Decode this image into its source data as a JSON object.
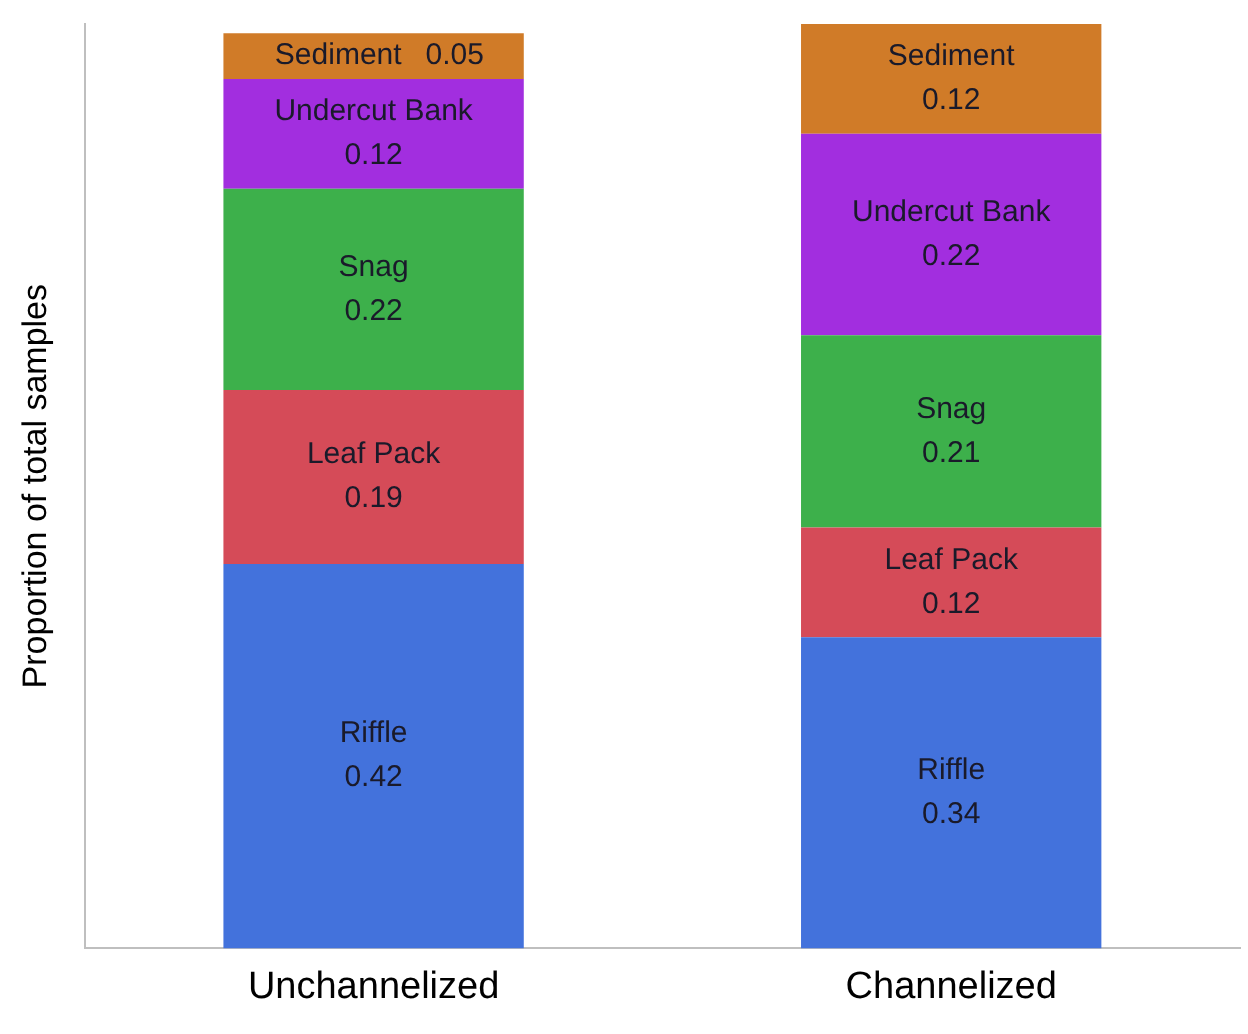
{
  "chart_data": {
    "type": "bar",
    "stacked": true,
    "ylabel": "Proportion of total samples",
    "categories": [
      "Unchannelized",
      "Channelized"
    ],
    "series": [
      {
        "name": "Riffle",
        "color": "#4372dc",
        "values": [
          0.42,
          0.34
        ]
      },
      {
        "name": "Leaf Pack",
        "color": "#d54b58",
        "values": [
          0.19,
          0.12
        ]
      },
      {
        "name": "Snag",
        "color": "#3db04b",
        "values": [
          0.22,
          0.21
        ]
      },
      {
        "name": "Undercut Bank",
        "color": "#a22edf",
        "values": [
          0.12,
          0.22
        ]
      },
      {
        "name": "Sediment",
        "color": "#d07b28",
        "values": [
          0.05,
          0.12
        ]
      }
    ],
    "data_labels": true,
    "legend": false,
    "grid": false,
    "tick_labels": "x"
  }
}
